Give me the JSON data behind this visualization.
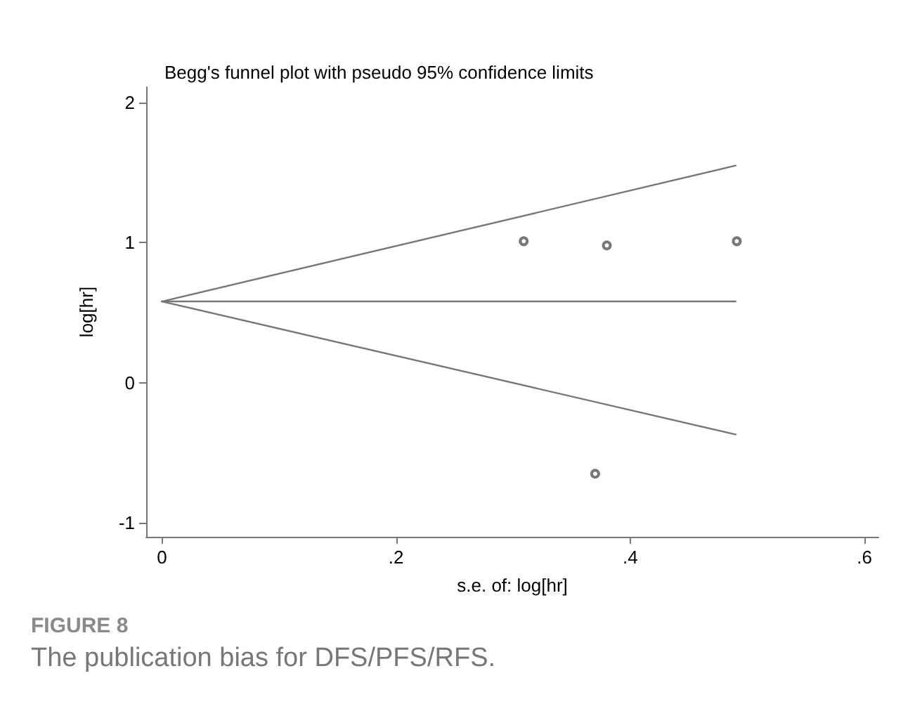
{
  "chart_data": {
    "type": "scatter",
    "title": "Begg's funnel plot with pseudo 95% confidence limits",
    "xlabel": "s.e. of: log[hr]",
    "ylabel": "log[hr]",
    "annotations": [
      "FIGURE 8",
      "The publication bias for DFS/PFS/RFS."
    ],
    "xlim": [
      -0.0135,
      0.612
    ],
    "ylim": [
      -1.1,
      2.11
    ],
    "xticks": [
      {
        "value": 0,
        "label": "0"
      },
      {
        "value": 0.2,
        "label": ".2"
      },
      {
        "value": 0.4,
        "label": ".4"
      },
      {
        "value": 0.6,
        "label": ".6"
      }
    ],
    "yticks": [
      -1,
      0,
      1,
      2
    ],
    "grid": false,
    "marker": "circle",
    "series": [
      {
        "color": "#555555",
        "x": [
          0.309,
          0.38,
          0.491,
          0.37
        ],
        "values": [
          1.01,
          0.98,
          1.01,
          -0.65
        ]
      },
      {
        "type": "line",
        "color": "#777777",
        "line_style": "solid",
        "marker": "none",
        "x": [
          0,
          0.49
        ],
        "values": [
          0.58,
          1.55
        ]
      },
      {
        "type": "line",
        "color": "#777777",
        "line_style": "solid",
        "marker": "none",
        "x": [
          0,
          0.49
        ],
        "values": [
          0.58,
          0.58
        ]
      },
      {
        "type": "line",
        "color": "#777777",
        "line_style": "solid",
        "marker": "none",
        "x": [
          0,
          0.49
        ],
        "values": [
          0.58,
          -0.37
        ]
      }
    ]
  }
}
